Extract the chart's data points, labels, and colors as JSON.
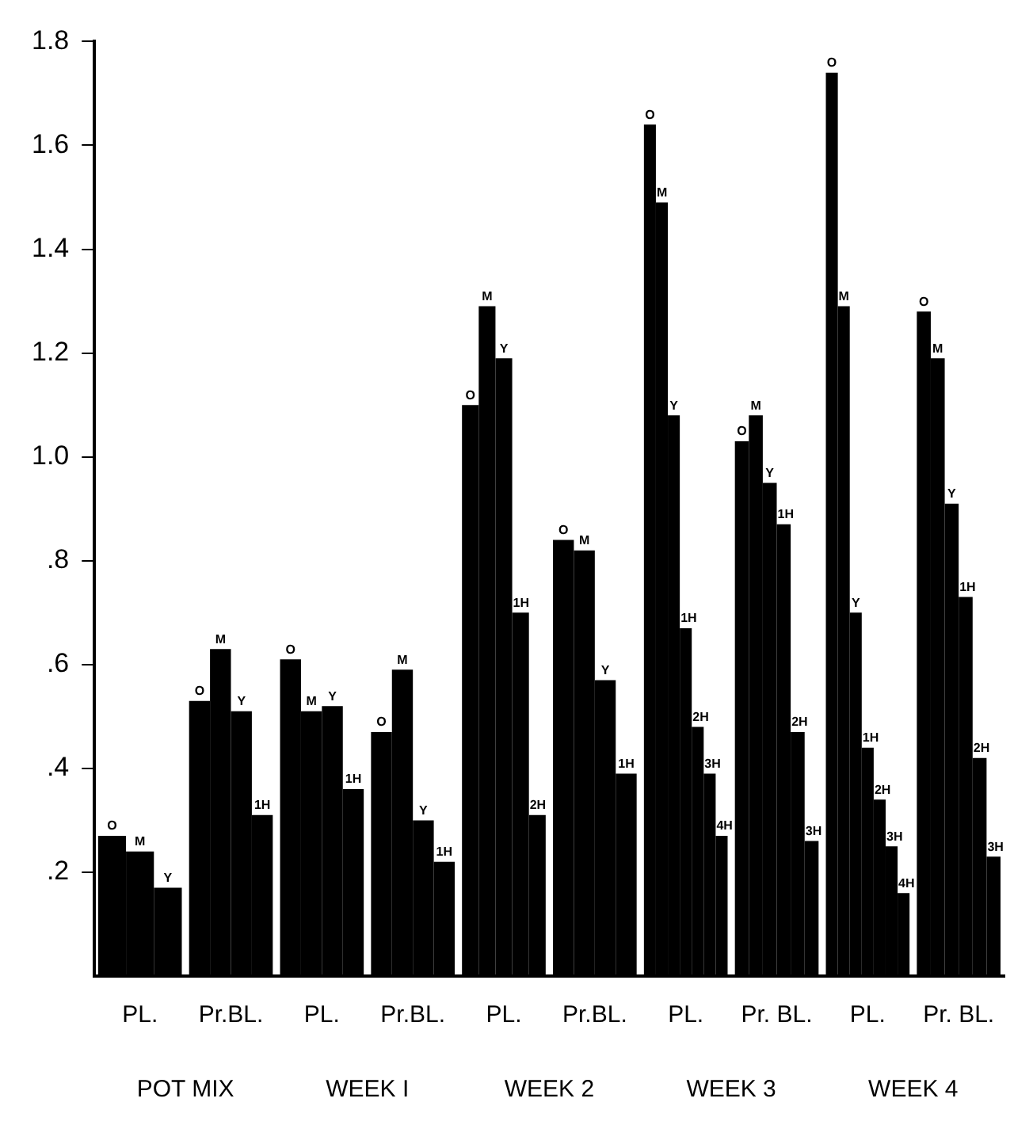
{
  "chart_data": {
    "type": "bar",
    "categories": [
      "PL.",
      "Pr.BL.",
      "PL.",
      "Pr.BL.",
      "PL.",
      "Pr.BL.",
      "PL.",
      "Pr. BL.",
      "PL.",
      "Pr. BL."
    ],
    "annotations": [
      "POT MIX",
      "WEEK I",
      "WEEK 2",
      "WEEK 3",
      "WEEK 4"
    ],
    "series": [
      {
        "name": "O",
        "color": "#000000",
        "values": [
          0.27,
          0.53,
          0.61,
          0.47,
          1.1,
          0.84,
          1.64,
          1.03,
          1.74,
          1.28
        ]
      },
      {
        "name": "M",
        "color": "#000000",
        "values": [
          0.24,
          0.63,
          0.51,
          0.59,
          1.29,
          0.82,
          1.49,
          1.08,
          1.29,
          1.19
        ]
      },
      {
        "name": "Y",
        "color": "#000000",
        "values": [
          0.17,
          0.51,
          0.52,
          0.3,
          1.19,
          0.57,
          1.08,
          0.95,
          0.7,
          0.91
        ]
      },
      {
        "name": "1H",
        "color": "#000000",
        "values": [
          null,
          0.31,
          0.36,
          0.22,
          0.7,
          0.39,
          0.67,
          0.87,
          0.44,
          0.73
        ]
      },
      {
        "name": "2H",
        "color": "#000000",
        "values": [
          null,
          null,
          null,
          null,
          0.31,
          null,
          0.48,
          0.47,
          0.34,
          0.42
        ]
      },
      {
        "name": "3H",
        "color": "#000000",
        "values": [
          null,
          null,
          null,
          null,
          null,
          null,
          0.39,
          0.26,
          0.25,
          0.23
        ]
      },
      {
        "name": "4H",
        "color": "#000000",
        "values": [
          null,
          null,
          null,
          null,
          null,
          null,
          0.27,
          null,
          0.16,
          null
        ]
      }
    ],
    "ylim": [
      0,
      1.8
    ],
    "yticks": [
      {
        "value": 0.2,
        "label": ".2"
      },
      {
        "value": 0.4,
        "label": ".4"
      },
      {
        "value": 0.6,
        "label": ".6"
      },
      {
        "value": 0.8,
        "label": ".8"
      },
      {
        "value": 1.0,
        "label": "1.0"
      },
      {
        "value": 1.2,
        "label": "1.2"
      },
      {
        "value": 1.4,
        "label": "1.4"
      },
      {
        "value": 1.6,
        "label": "1.6"
      },
      {
        "value": 1.8,
        "label": "1.8"
      }
    ],
    "grid": false,
    "legend": false
  }
}
